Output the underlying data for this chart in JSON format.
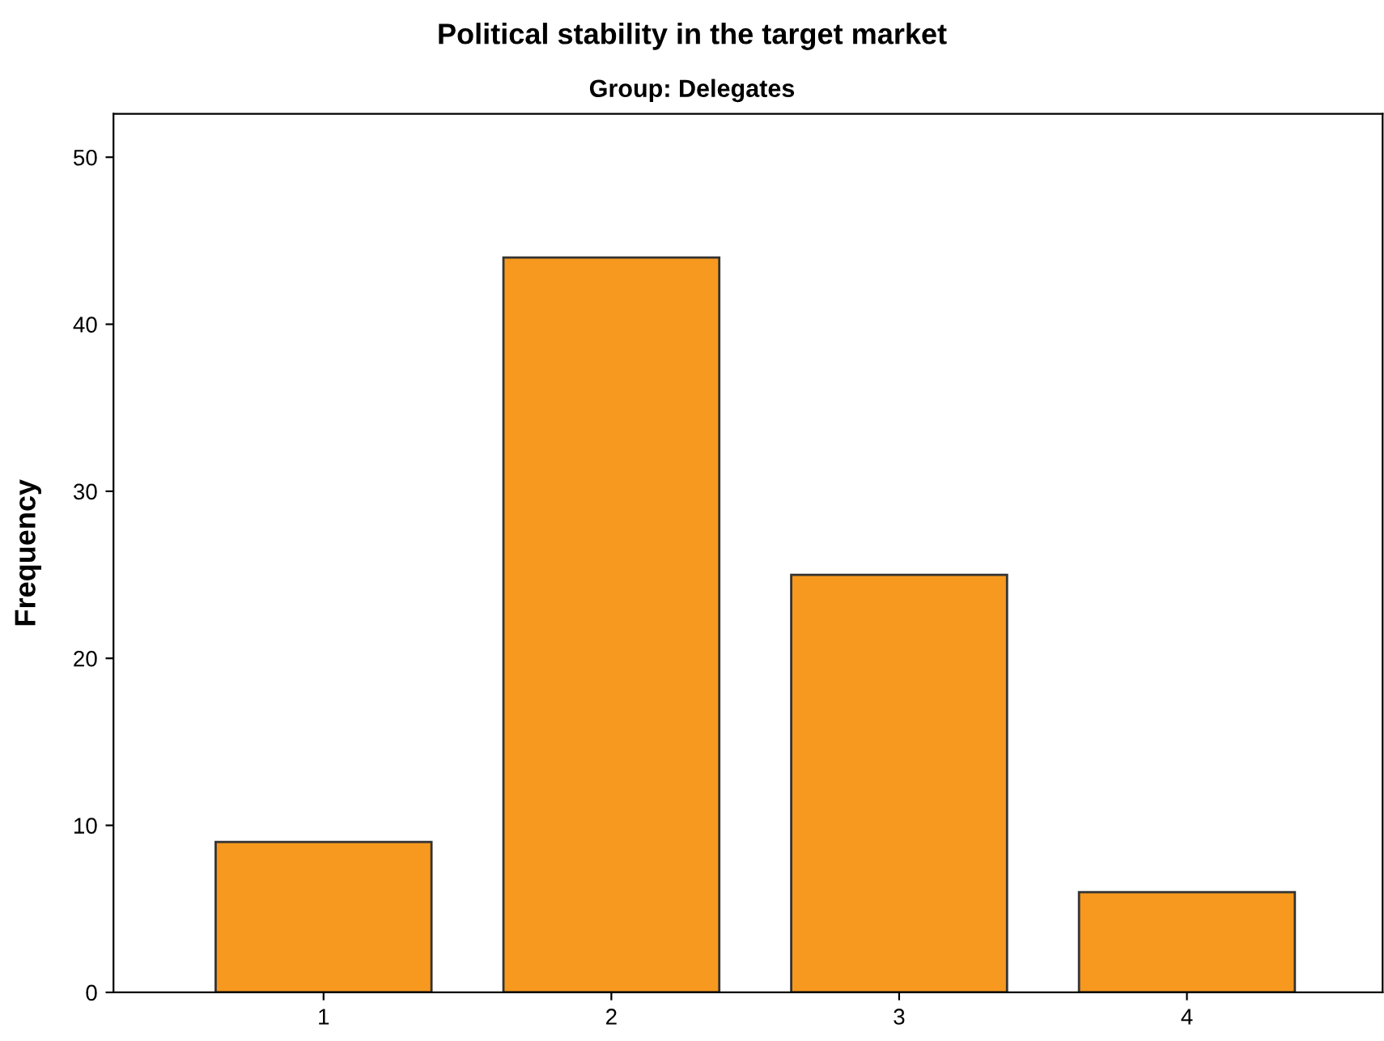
{
  "chart_data": {
    "type": "bar",
    "title": "Political stability in the target market",
    "subtitle": "Group: Delegates",
    "ylabel": "Frequency",
    "categories": [
      "1",
      "2",
      "3",
      "4"
    ],
    "values": [
      9,
      44,
      25,
      6
    ],
    "color": "#f7991f",
    "ylim": [
      0,
      52.6
    ],
    "yticks": [
      0,
      10,
      20,
      30,
      40,
      50
    ],
    "grid": false
  }
}
